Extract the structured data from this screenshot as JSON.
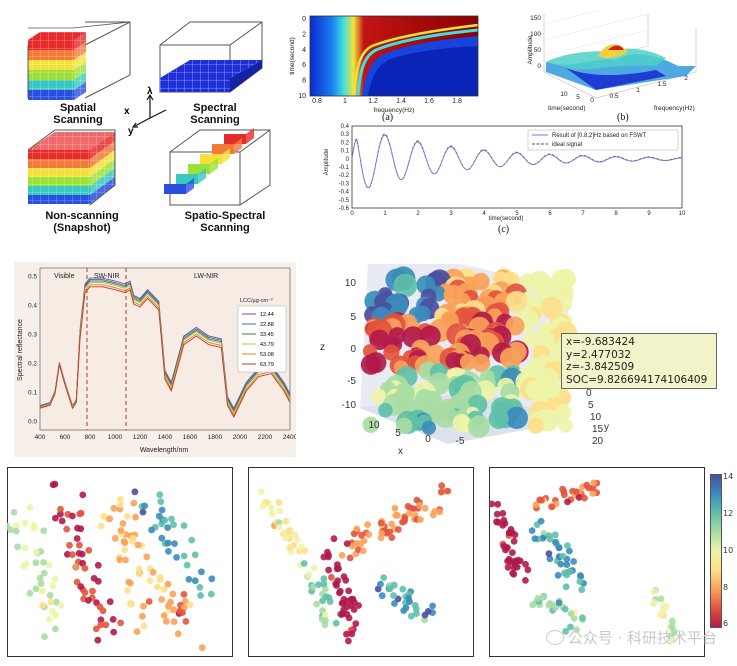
{
  "scanning": {
    "spatial": "Spatial\nScanning",
    "spectral": "Spectral\nScanning",
    "nonscanning": "Non-scanning\n(Snapshot)",
    "spatiospectral": "Spatio-Spectral\nScanning",
    "axes": {
      "x": "x",
      "y": "y",
      "lambda": "λ"
    }
  },
  "panel_a": {
    "letter": "(a)",
    "ylabel": "time(second)",
    "xlabel": "frequency(Hz)",
    "xticks": [
      "0.8",
      "1",
      "1.2",
      "1.4",
      "1.6",
      "1.8"
    ],
    "yticks": [
      "0",
      "2",
      "4",
      "6",
      "8",
      "10"
    ]
  },
  "panel_b": {
    "letter": "(b)",
    "zlabel": "Amplitude",
    "zticks": [
      "150",
      "100",
      "50",
      "0"
    ],
    "timelabel": "time(second)",
    "timeticks": [
      "10",
      "5",
      "0"
    ],
    "freqlabel": "frequency(Hz)",
    "freqticks": [
      "0.5",
      "1",
      "1.5",
      "2"
    ]
  },
  "panel_c": {
    "letter": "(c)",
    "ylabel": "Amplitude",
    "xlabel": "time(second)",
    "yticks": [
      "0.4",
      "0.3",
      "0.2",
      "0.1",
      "0",
      "-0.1",
      "-0.2",
      "-0.3",
      "-0.4",
      "-0.5",
      "-0.6"
    ],
    "xticks": [
      "0",
      "1",
      "2",
      "3",
      "4",
      "5",
      "6",
      "7",
      "8",
      "9",
      "10"
    ],
    "legend": [
      "Result of [0.8,2]Hz based on FSWT",
      "ideal signal"
    ]
  },
  "spectral_plot": {
    "regions": [
      "Visible",
      "SW-NIR",
      "LW-NIR"
    ],
    "ylabel": "Spectral reflectance",
    "xlabel": "Wavelength/nm",
    "xticks": [
      "400",
      "600",
      "800",
      "1000",
      "1200",
      "1400",
      "1600",
      "1800",
      "2000",
      "2200",
      "2400"
    ],
    "yticks": [
      "0.0",
      "0.1",
      "0.2",
      "0.3",
      "0.4",
      "0.5"
    ],
    "legend_title": "LCC/µg·cm⁻²",
    "legend": [
      "12.44",
      "22.88",
      "33.45",
      "43.79",
      "53.08",
      "63.79"
    ],
    "colors": [
      "#7b4a9e",
      "#3a6fb5",
      "#2e8b57",
      "#d1b83a",
      "#e0832e",
      "#c0392b"
    ]
  },
  "scatter3d": {
    "zlabel": "z",
    "xlabel": "x",
    "ylabel": "y",
    "zticks": [
      "10",
      "5",
      "0",
      "-5",
      "-10"
    ],
    "xticks": [
      "10",
      "5",
      "0",
      "-5"
    ],
    "yticks": [
      "0",
      "5",
      "10",
      "15",
      "20"
    ],
    "tooltip": [
      "x=-9.683424",
      "y=2.477032",
      "z=-3.842509",
      "SOC=9.826694174106409"
    ]
  },
  "colorbar": {
    "ticks": [
      "14",
      "12",
      "10",
      "8",
      "6"
    ]
  },
  "watermark": "公众号 · 科研技术平台"
}
